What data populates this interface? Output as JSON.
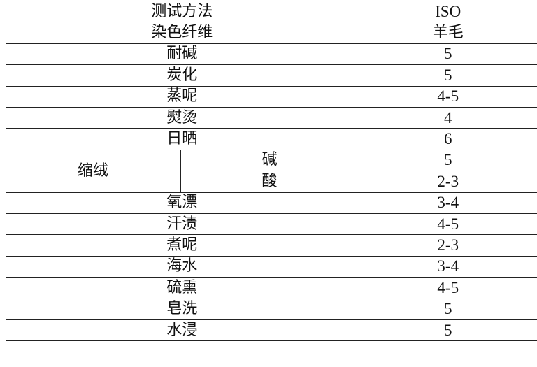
{
  "header": {
    "method": "测试方法",
    "standard": "ISO"
  },
  "fiber": {
    "label": "染色纤维",
    "value": "羊毛"
  },
  "rows_before": [
    {
      "label": "耐碱",
      "value": "5"
    },
    {
      "label": "炭化",
      "value": "5"
    },
    {
      "label": "蒸呢",
      "value": "4-5"
    },
    {
      "label": "熨烫",
      "value": "4"
    },
    {
      "label": "日晒",
      "value": "6"
    }
  ],
  "milling": {
    "label": "缩绒",
    "sub": [
      {
        "label": "碱",
        "value": "5"
      },
      {
        "label": "酸",
        "value": "2-3"
      }
    ]
  },
  "rows_after": [
    {
      "label": "氧漂",
      "value": "3-4"
    },
    {
      "label": "汗渍",
      "value": "4-5"
    },
    {
      "label": "煮呢",
      "value": "2-3"
    },
    {
      "label": "海水",
      "value": "3-4"
    },
    {
      "label": "硫熏",
      "value": "4-5"
    },
    {
      "label": "皂洗",
      "value": "5"
    },
    {
      "label": "水浸",
      "value": "5"
    }
  ]
}
